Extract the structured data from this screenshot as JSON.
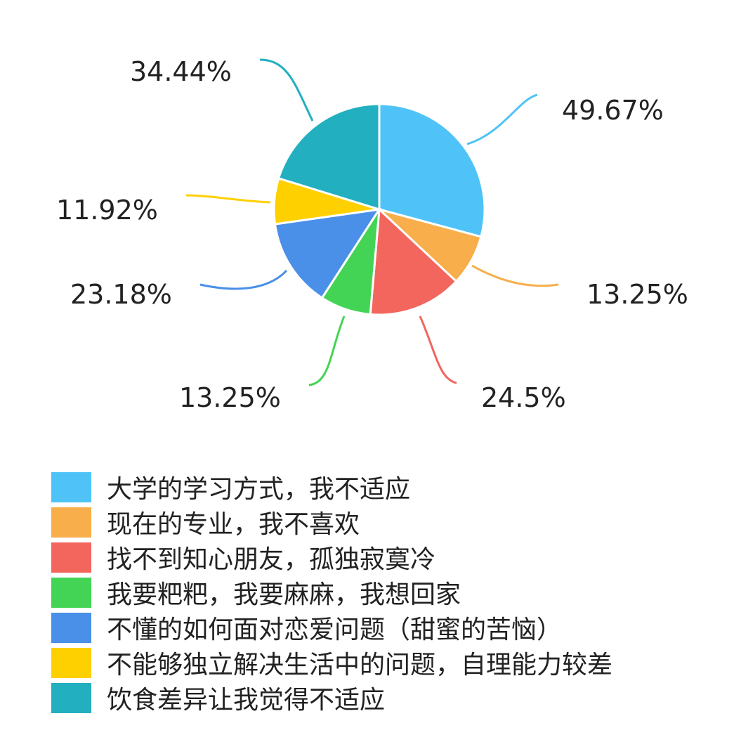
{
  "chart_data": {
    "type": "pie",
    "categories": [
      "大学的学习方式，我不适应",
      "现在的专业，我不喜欢",
      "找不到知心朋友，孤独寂寞冷",
      "我要粑粑，我要麻麻，我想回家",
      "不懂的如何面对恋爱问题（甜蜜的苦恼）",
      "不能够独立解决生活中的问题，自理能力较差",
      "饮食差异让我觉得不适应"
    ],
    "values": [
      49.67,
      13.25,
      24.5,
      13.25,
      23.18,
      11.92,
      34.44
    ],
    "data_labels": [
      "49.67%",
      "13.25%",
      "24.5%",
      "13.25%",
      "23.18%",
      "11.92%",
      "34.44%"
    ],
    "colors": [
      "#4FC3F7",
      "#F8AE4A",
      "#F2665E",
      "#44D455",
      "#4A8FE8",
      "#FFD000",
      "#22AFBF"
    ],
    "start_angle": "top",
    "direction": "clockwise",
    "legend_placement": "bottom-left"
  }
}
